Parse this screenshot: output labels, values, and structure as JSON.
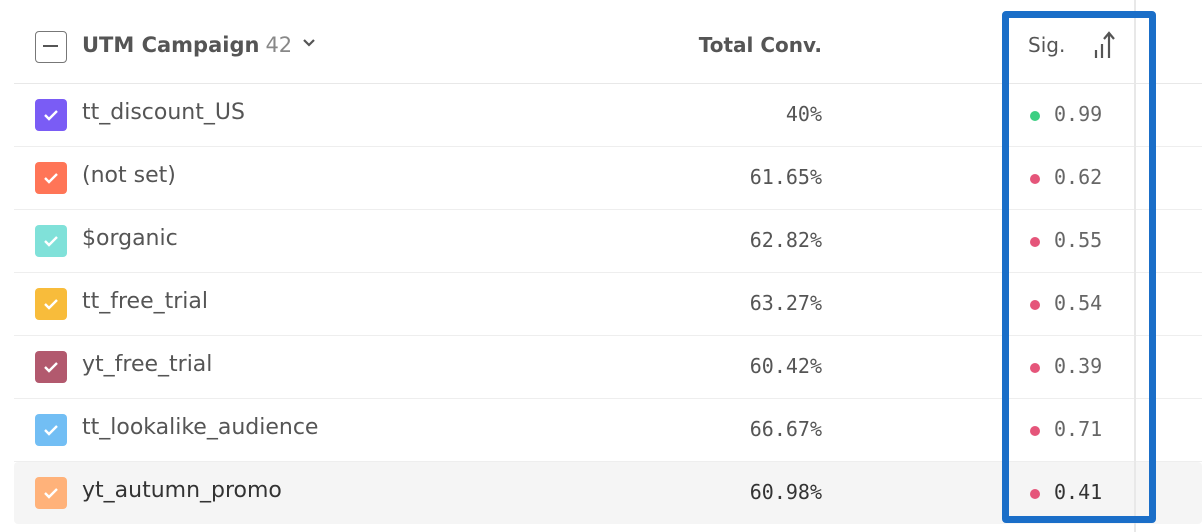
{
  "header": {
    "title": "UTM Campaign",
    "count": "42",
    "conv_label": "Total Conv.",
    "sig_label": "Sig."
  },
  "colors": {
    "highlight": "#1a6ec8",
    "sig_good": "#3ccf82",
    "sig_bad": "#e5557a"
  },
  "rows": [
    {
      "name": "tt_discount_US",
      "conv": "40%",
      "sig": "0.99",
      "color": "#7a5cf5",
      "good": true
    },
    {
      "name": "(not set)",
      "conv": "61.65%",
      "sig": "0.62",
      "color": "#ff7557",
      "good": false
    },
    {
      "name": "$organic",
      "conv": "62.82%",
      "sig": "0.55",
      "color": "#80e1d9",
      "good": false
    },
    {
      "name": "tt_free_trial",
      "conv": "63.27%",
      "sig": "0.54",
      "color": "#f8bc3b",
      "good": false
    },
    {
      "name": "yt_free_trial",
      "conv": "60.42%",
      "sig": "0.39",
      "color": "#b2596e",
      "good": false
    },
    {
      "name": "tt_lookalike_audience",
      "conv": "66.67%",
      "sig": "0.71",
      "color": "#72bef4",
      "good": false
    },
    {
      "name": "yt_autumn_promo",
      "conv": "60.98%",
      "sig": "0.41",
      "color": "#ffb27a",
      "good": false
    }
  ]
}
